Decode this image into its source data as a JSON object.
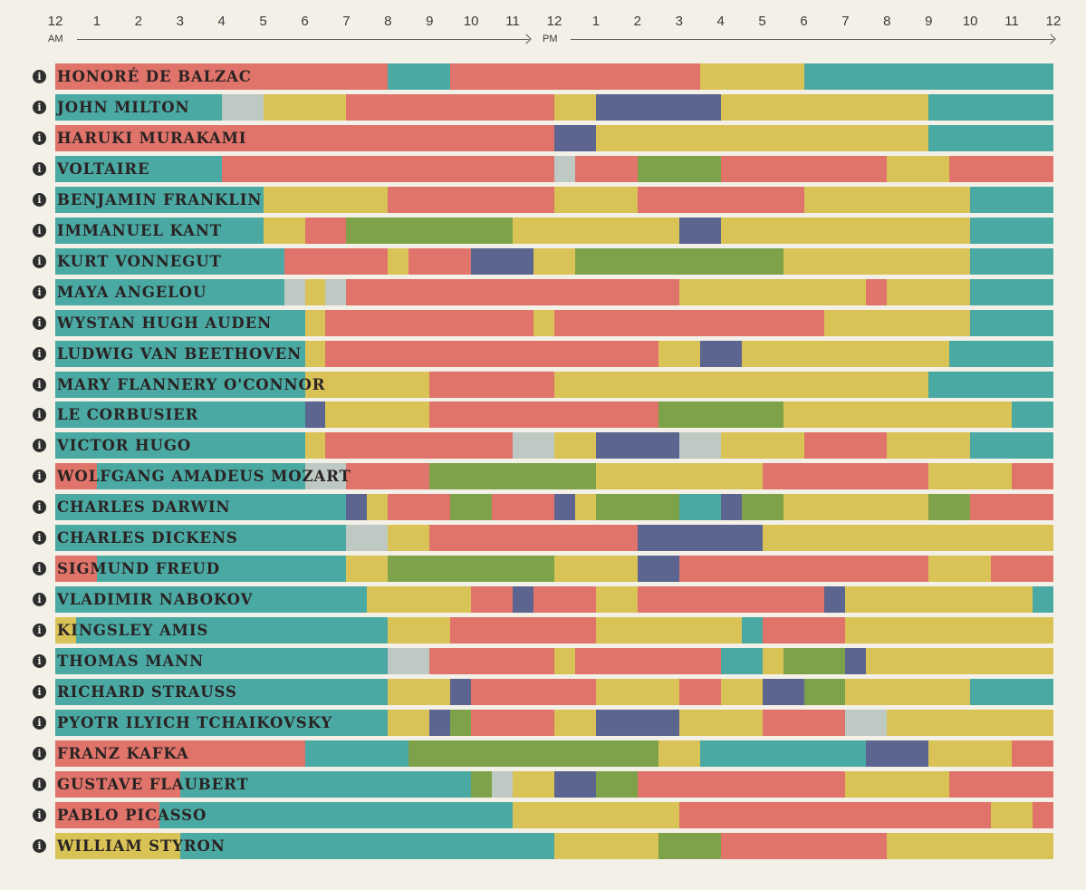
{
  "chart_data": {
    "type": "timeline",
    "x_unit": "hour of day",
    "x_range": [
      0,
      24
    ],
    "tick_labels": [
      "12",
      "1",
      "2",
      "3",
      "4",
      "5",
      "6",
      "7",
      "8",
      "9",
      "10",
      "11",
      "12",
      "1",
      "2",
      "3",
      "4",
      "5",
      "6",
      "7",
      "8",
      "9",
      "10",
      "11",
      "12"
    ],
    "am_label": "AM",
    "pm_label": "PM",
    "category_colors": {
      "sleep": "#4aa9a3",
      "creative": "#e0736a",
      "leisure": "#d9c356",
      "exercise": "#7ea24a",
      "day_job": "#5b6590",
      "other": "#bfc9c3"
    },
    "rows": [
      {
        "name": "HONORÉ DE BALZAC",
        "segments": [
          [
            0,
            1,
            "creative"
          ],
          [
            1,
            8,
            "creative"
          ],
          [
            8,
            9.5,
            "sleep"
          ],
          [
            9.5,
            15.5,
            "creative"
          ],
          [
            15.5,
            18,
            "leisure"
          ],
          [
            18,
            24,
            "sleep"
          ]
        ]
      },
      {
        "name": "JOHN MILTON",
        "segments": [
          [
            0,
            4,
            "sleep"
          ],
          [
            4,
            5,
            "other"
          ],
          [
            5,
            7,
            "leisure"
          ],
          [
            7,
            12,
            "creative"
          ],
          [
            12,
            13,
            "leisure"
          ],
          [
            13,
            16,
            "day_job"
          ],
          [
            16,
            21,
            "leisure"
          ],
          [
            21,
            24,
            "sleep"
          ]
        ]
      },
      {
        "name": "HARUKI MURAKAMI",
        "segments": [
          [
            0,
            12,
            "creative"
          ],
          [
            12,
            13,
            "day_job"
          ],
          [
            13,
            21,
            "leisure"
          ],
          [
            21,
            24,
            "sleep"
          ]
        ]
      },
      {
        "name": "VOLTAIRE",
        "segments": [
          [
            0,
            4,
            "sleep"
          ],
          [
            4,
            12,
            "creative"
          ],
          [
            12,
            12.5,
            "other"
          ],
          [
            12.5,
            14,
            "creative"
          ],
          [
            14,
            16,
            "exercise"
          ],
          [
            16,
            20,
            "creative"
          ],
          [
            20,
            21.5,
            "leisure"
          ],
          [
            21.5,
            24,
            "creative"
          ]
        ]
      },
      {
        "name": "BENJAMIN FRANKLIN",
        "segments": [
          [
            0,
            5,
            "sleep"
          ],
          [
            5,
            8,
            "leisure"
          ],
          [
            8,
            12,
            "creative"
          ],
          [
            12,
            14,
            "leisure"
          ],
          [
            14,
            18,
            "creative"
          ],
          [
            18,
            22,
            "leisure"
          ],
          [
            22,
            24,
            "sleep"
          ]
        ]
      },
      {
        "name": "IMMANUEL KANT",
        "segments": [
          [
            0,
            5,
            "sleep"
          ],
          [
            5,
            6,
            "leisure"
          ],
          [
            6,
            7,
            "creative"
          ],
          [
            7,
            11,
            "exercise"
          ],
          [
            11,
            15,
            "leisure"
          ],
          [
            15,
            16,
            "day_job"
          ],
          [
            16,
            22,
            "leisure"
          ],
          [
            22,
            24,
            "sleep"
          ]
        ]
      },
      {
        "name": "KURT VONNEGUT",
        "segments": [
          [
            0,
            5.5,
            "sleep"
          ],
          [
            5.5,
            8,
            "creative"
          ],
          [
            8,
            8.5,
            "leisure"
          ],
          [
            8.5,
            10,
            "creative"
          ],
          [
            10,
            11.5,
            "day_job"
          ],
          [
            11.5,
            12.5,
            "leisure"
          ],
          [
            12.5,
            17.5,
            "exercise"
          ],
          [
            17.5,
            22,
            "leisure"
          ],
          [
            22,
            24,
            "sleep"
          ]
        ]
      },
      {
        "name": "MAYA ANGELOU",
        "segments": [
          [
            0,
            5.5,
            "sleep"
          ],
          [
            5.5,
            6,
            "other"
          ],
          [
            6,
            6.5,
            "leisure"
          ],
          [
            6.5,
            7,
            "other"
          ],
          [
            7,
            15,
            "creative"
          ],
          [
            15,
            19.5,
            "leisure"
          ],
          [
            19.5,
            20,
            "creative"
          ],
          [
            20,
            22,
            "leisure"
          ],
          [
            22,
            24,
            "sleep"
          ]
        ]
      },
      {
        "name": "WYSTAN HUGH AUDEN",
        "segments": [
          [
            0,
            6,
            "sleep"
          ],
          [
            6,
            6.5,
            "leisure"
          ],
          [
            6.5,
            11.5,
            "creative"
          ],
          [
            11.5,
            12,
            "leisure"
          ],
          [
            12,
            18.5,
            "creative"
          ],
          [
            18.5,
            22,
            "leisure"
          ],
          [
            22,
            24,
            "sleep"
          ]
        ]
      },
      {
        "name": "LUDWIG VAN BEETHOVEN",
        "segments": [
          [
            0,
            6,
            "sleep"
          ],
          [
            6,
            6.5,
            "leisure"
          ],
          [
            6.5,
            14.5,
            "creative"
          ],
          [
            14.5,
            15.5,
            "leisure"
          ],
          [
            15.5,
            16.5,
            "day_job"
          ],
          [
            16.5,
            21.5,
            "leisure"
          ],
          [
            21.5,
            24,
            "sleep"
          ]
        ]
      },
      {
        "name": "MARY FLANNERY O'CONNOR",
        "segments": [
          [
            0,
            6,
            "sleep"
          ],
          [
            6,
            9,
            "leisure"
          ],
          [
            9,
            12,
            "creative"
          ],
          [
            12,
            21,
            "leisure"
          ],
          [
            21,
            24,
            "sleep"
          ]
        ]
      },
      {
        "name": "LE CORBUSIER",
        "segments": [
          [
            0,
            6,
            "sleep"
          ],
          [
            6,
            6.5,
            "day_job"
          ],
          [
            6.5,
            9,
            "leisure"
          ],
          [
            9,
            14.5,
            "creative"
          ],
          [
            14.5,
            17.5,
            "exercise"
          ],
          [
            17.5,
            23,
            "leisure"
          ],
          [
            23,
            24,
            "sleep"
          ]
        ]
      },
      {
        "name": "VICTOR HUGO",
        "segments": [
          [
            0,
            6,
            "sleep"
          ],
          [
            6,
            6.5,
            "leisure"
          ],
          [
            6.5,
            11,
            "creative"
          ],
          [
            11,
            12,
            "other"
          ],
          [
            12,
            13,
            "leisure"
          ],
          [
            13,
            15,
            "day_job"
          ],
          [
            15,
            16,
            "other"
          ],
          [
            16,
            18,
            "leisure"
          ],
          [
            18,
            20,
            "creative"
          ],
          [
            20,
            22,
            "leisure"
          ],
          [
            22,
            24,
            "sleep"
          ]
        ]
      },
      {
        "name": "WOLFGANG AMADEUS MOZART",
        "segments": [
          [
            0,
            1,
            "creative"
          ],
          [
            1,
            6,
            "sleep"
          ],
          [
            6,
            7,
            "other"
          ],
          [
            7,
            9,
            "creative"
          ],
          [
            9,
            13,
            "exercise"
          ],
          [
            13,
            17,
            "leisure"
          ],
          [
            17,
            21,
            "creative"
          ],
          [
            21,
            23,
            "leisure"
          ],
          [
            23,
            24,
            "creative"
          ]
        ]
      },
      {
        "name": "CHARLES DARWIN",
        "segments": [
          [
            0,
            7,
            "sleep"
          ],
          [
            7,
            7.5,
            "day_job"
          ],
          [
            7.5,
            8,
            "leisure"
          ],
          [
            8,
            9.5,
            "creative"
          ],
          [
            9.5,
            10.5,
            "exercise"
          ],
          [
            10.5,
            12,
            "creative"
          ],
          [
            12,
            12.5,
            "day_job"
          ],
          [
            12.5,
            13,
            "leisure"
          ],
          [
            13,
            15,
            "exercise"
          ],
          [
            15,
            16,
            "sleep"
          ],
          [
            16,
            16.5,
            "day_job"
          ],
          [
            16.5,
            17.5,
            "exercise"
          ],
          [
            17.5,
            21,
            "leisure"
          ],
          [
            21,
            22,
            "exercise"
          ],
          [
            22,
            24,
            "creative"
          ]
        ]
      },
      {
        "name": "CHARLES DICKENS",
        "segments": [
          [
            0,
            7,
            "sleep"
          ],
          [
            7,
            8,
            "other"
          ],
          [
            8,
            9,
            "leisure"
          ],
          [
            9,
            14,
            "creative"
          ],
          [
            14,
            17,
            "day_job"
          ],
          [
            17,
            24,
            "leisure"
          ]
        ]
      },
      {
        "name": "SIGMUND FREUD",
        "segments": [
          [
            0,
            1,
            "creative"
          ],
          [
            1,
            7,
            "sleep"
          ],
          [
            7,
            8,
            "leisure"
          ],
          [
            8,
            12,
            "exercise"
          ],
          [
            12,
            14,
            "leisure"
          ],
          [
            14,
            15,
            "day_job"
          ],
          [
            15,
            21,
            "creative"
          ],
          [
            21,
            22.5,
            "leisure"
          ],
          [
            22.5,
            24,
            "creative"
          ]
        ]
      },
      {
        "name": "VLADIMIR NABOKOV",
        "segments": [
          [
            0,
            7.5,
            "sleep"
          ],
          [
            7.5,
            10,
            "leisure"
          ],
          [
            10,
            11,
            "creative"
          ],
          [
            11,
            11.5,
            "day_job"
          ],
          [
            11.5,
            13,
            "creative"
          ],
          [
            13,
            14,
            "leisure"
          ],
          [
            14,
            18.5,
            "creative"
          ],
          [
            18.5,
            19,
            "day_job"
          ],
          [
            19,
            23.5,
            "leisure"
          ],
          [
            23.5,
            24,
            "sleep"
          ]
        ]
      },
      {
        "name": "KINGSLEY AMIS",
        "segments": [
          [
            0,
            0.5,
            "leisure"
          ],
          [
            0.5,
            8,
            "sleep"
          ],
          [
            8,
            9.5,
            "leisure"
          ],
          [
            9.5,
            13,
            "creative"
          ],
          [
            13,
            16.5,
            "leisure"
          ],
          [
            16.5,
            17,
            "sleep"
          ],
          [
            17,
            19,
            "creative"
          ],
          [
            19,
            24,
            "leisure"
          ]
        ]
      },
      {
        "name": "THOMAS MANN",
        "segments": [
          [
            0,
            8,
            "sleep"
          ],
          [
            8,
            9,
            "other"
          ],
          [
            9,
            12,
            "creative"
          ],
          [
            12,
            12.5,
            "leisure"
          ],
          [
            12.5,
            16,
            "creative"
          ],
          [
            16,
            17,
            "sleep"
          ],
          [
            17,
            17.5,
            "leisure"
          ],
          [
            17.5,
            19,
            "exercise"
          ],
          [
            19,
            19.5,
            "day_job"
          ],
          [
            19.5,
            24,
            "leisure"
          ]
        ]
      },
      {
        "name": "RICHARD STRAUSS",
        "segments": [
          [
            0,
            8,
            "sleep"
          ],
          [
            8,
            9.5,
            "leisure"
          ],
          [
            9.5,
            10,
            "day_job"
          ],
          [
            10,
            13,
            "creative"
          ],
          [
            13,
            15,
            "leisure"
          ],
          [
            15,
            16,
            "creative"
          ],
          [
            16,
            17,
            "leisure"
          ],
          [
            17,
            18,
            "day_job"
          ],
          [
            18,
            19,
            "exercise"
          ],
          [
            19,
            22,
            "leisure"
          ],
          [
            22,
            24,
            "sleep"
          ]
        ]
      },
      {
        "name": "PYOTR ILYICH TCHAIKOVSKY",
        "segments": [
          [
            0,
            8,
            "sleep"
          ],
          [
            8,
            9,
            "leisure"
          ],
          [
            9,
            9.5,
            "day_job"
          ],
          [
            9.5,
            10,
            "exercise"
          ],
          [
            10,
            12,
            "creative"
          ],
          [
            12,
            13,
            "leisure"
          ],
          [
            13,
            15,
            "day_job"
          ],
          [
            15,
            17,
            "leisure"
          ],
          [
            17,
            19,
            "creative"
          ],
          [
            19,
            20,
            "other"
          ],
          [
            20,
            24,
            "leisure"
          ]
        ]
      },
      {
        "name": "FRANZ KAFKA",
        "segments": [
          [
            0,
            6,
            "creative"
          ],
          [
            6,
            8.5,
            "sleep"
          ],
          [
            8.5,
            14.5,
            "exercise"
          ],
          [
            14.5,
            15.5,
            "leisure"
          ],
          [
            15.5,
            19.5,
            "sleep"
          ],
          [
            19.5,
            21,
            "day_job"
          ],
          [
            21,
            23,
            "leisure"
          ],
          [
            23,
            24,
            "creative"
          ]
        ]
      },
      {
        "name": "GUSTAVE FLAUBERT",
        "segments": [
          [
            0,
            3,
            "creative"
          ],
          [
            3,
            10,
            "sleep"
          ],
          [
            10,
            10.5,
            "exercise"
          ],
          [
            10.5,
            11,
            "other"
          ],
          [
            11,
            12,
            "leisure"
          ],
          [
            12,
            13,
            "day_job"
          ],
          [
            13,
            14,
            "exercise"
          ],
          [
            14,
            19,
            "creative"
          ],
          [
            19,
            21.5,
            "leisure"
          ],
          [
            21.5,
            24,
            "creative"
          ]
        ]
      },
      {
        "name": "PABLO PICASSO",
        "segments": [
          [
            0,
            2.5,
            "creative"
          ],
          [
            2.5,
            11,
            "sleep"
          ],
          [
            11,
            15,
            "leisure"
          ],
          [
            15,
            22.5,
            "creative"
          ],
          [
            22.5,
            23.5,
            "leisure"
          ],
          [
            23.5,
            24,
            "creative"
          ]
        ]
      },
      {
        "name": "WILLIAM STYRON",
        "segments": [
          [
            0,
            3,
            "leisure"
          ],
          [
            3,
            12,
            "sleep"
          ],
          [
            12,
            14.5,
            "leisure"
          ],
          [
            14.5,
            16,
            "exercise"
          ],
          [
            16,
            20,
            "creative"
          ],
          [
            20,
            24,
            "leisure"
          ]
        ]
      }
    ]
  }
}
